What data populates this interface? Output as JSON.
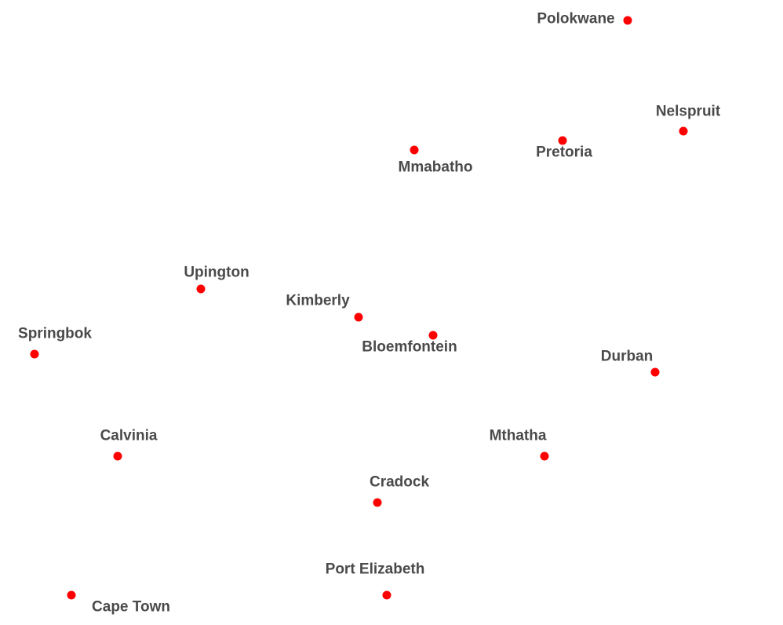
{
  "map": {
    "marker_color": "#ff0000",
    "label_color": "#4a4a4a",
    "cities": [
      {
        "name": "Polokwane"
      },
      {
        "name": "Nelspruit"
      },
      {
        "name": "Pretoria"
      },
      {
        "name": "Mmabatho"
      },
      {
        "name": "Upington"
      },
      {
        "name": "Kimberly"
      },
      {
        "name": "Bloemfontein"
      },
      {
        "name": "Springbok"
      },
      {
        "name": "Durban"
      },
      {
        "name": "Calvinia"
      },
      {
        "name": "Mthatha"
      },
      {
        "name": "Cradock"
      },
      {
        "name": "Port Elizabeth"
      },
      {
        "name": "Cape Town"
      }
    ]
  }
}
